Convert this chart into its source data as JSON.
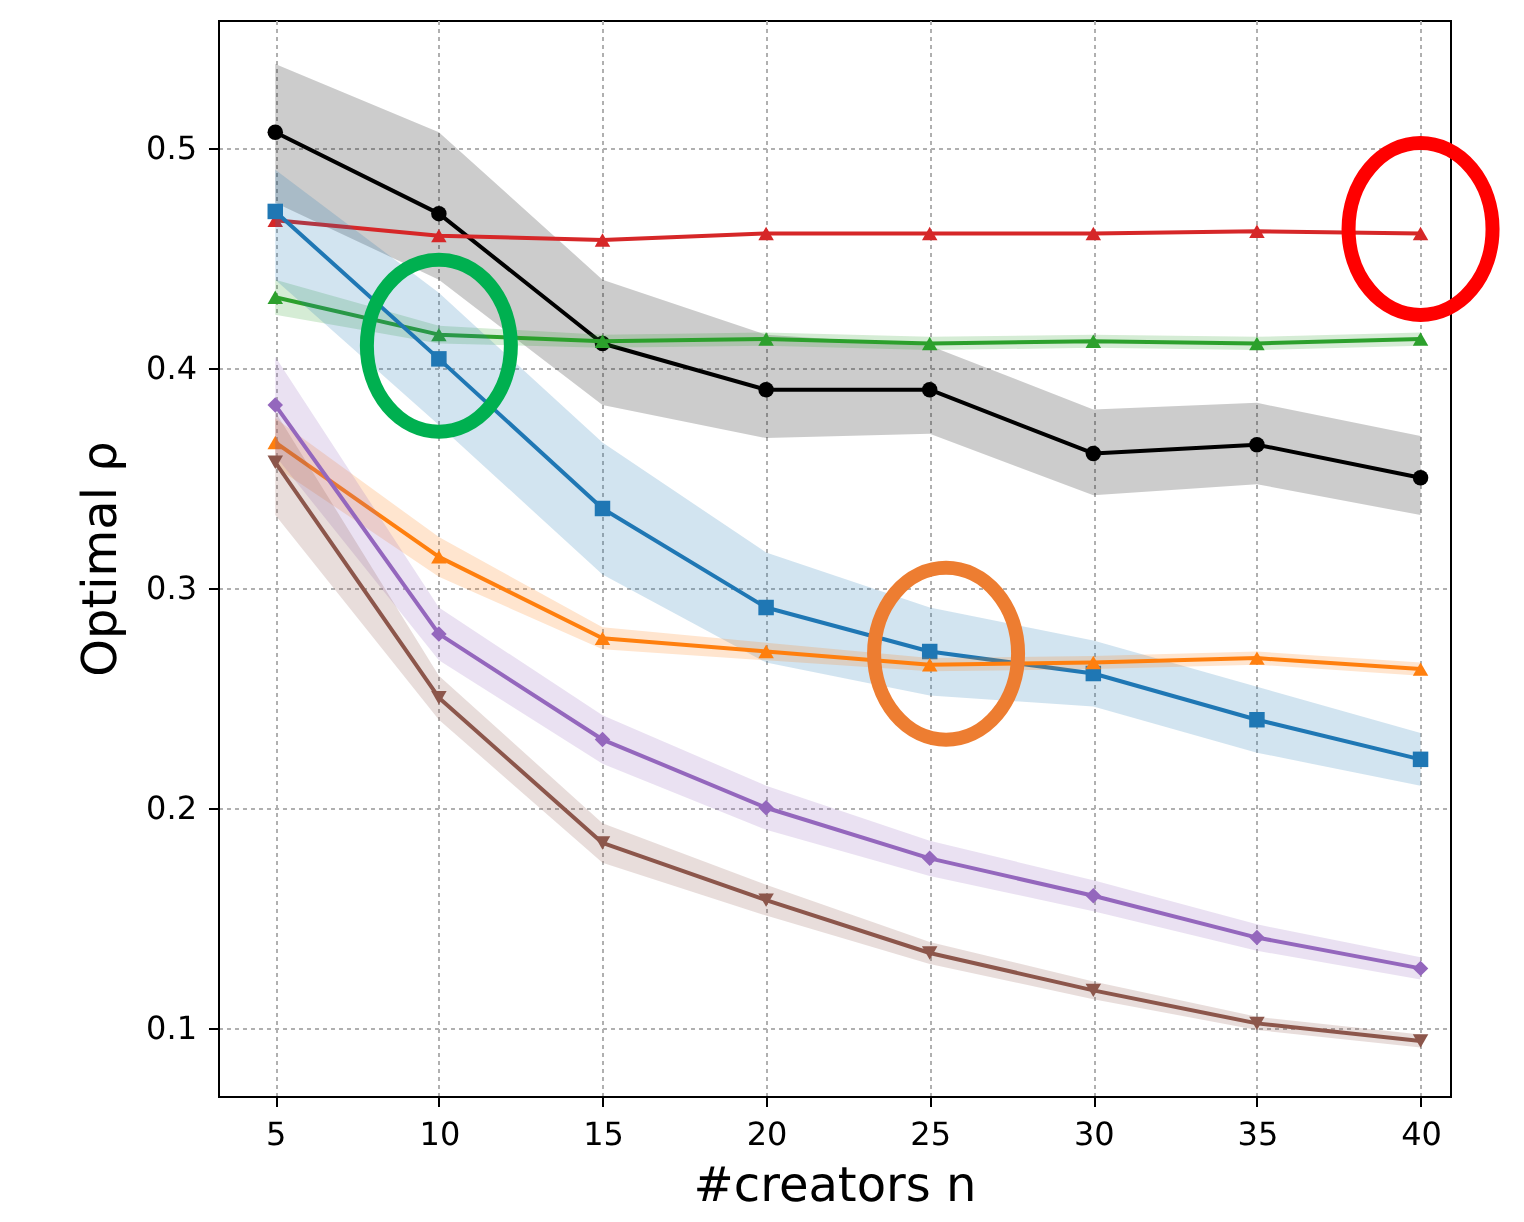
{
  "chart_data": {
    "type": "line",
    "xlabel": "#creators n",
    "ylabel": "Optimal ρ",
    "x": [
      5,
      10,
      15,
      20,
      25,
      30,
      35,
      40
    ],
    "xlim": [
      3.25,
      40.9
    ],
    "xticks": [
      5,
      10,
      15,
      20,
      25,
      30,
      35,
      40
    ],
    "ylim": [
      0.069,
      0.558
    ],
    "yticks": [
      0.1,
      0.2,
      0.3,
      0.4,
      0.5
    ],
    "grid": true,
    "line_style": "solid",
    "series": [
      {
        "color": "#000000",
        "marker": "circle",
        "values": [
          0.507,
          0.47,
          0.411,
          0.39,
          0.39,
          0.361,
          0.365,
          0.35
        ],
        "lower": [
          0.475,
          0.44,
          0.383,
          0.368,
          0.37,
          0.342,
          0.347,
          0.333
        ],
        "upper": [
          0.538,
          0.507,
          0.44,
          0.415,
          0.41,
          0.381,
          0.384,
          0.369
        ]
      },
      {
        "color": "#d62728",
        "marker": "triangle",
        "values": [
          0.467,
          0.46,
          0.458,
          0.461,
          0.461,
          0.461,
          0.462,
          0.461
        ]
      },
      {
        "color": "#2ca02c",
        "marker": "triangle",
        "values": [
          0.432,
          0.415,
          0.412,
          0.413,
          0.411,
          0.412,
          0.411,
          0.413
        ],
        "lower": [
          0.424,
          0.411,
          0.409,
          0.41,
          0.408,
          0.409,
          0.408,
          0.41
        ],
        "upper": [
          0.44,
          0.419,
          0.415,
          0.416,
          0.414,
          0.415,
          0.414,
          0.416
        ]
      },
      {
        "color": "#1f77b4",
        "marker": "square",
        "values": [
          0.471,
          0.404,
          0.336,
          0.291,
          0.271,
          0.261,
          0.24,
          0.222
        ],
        "lower": [
          0.44,
          0.374,
          0.306,
          0.266,
          0.251,
          0.246,
          0.225,
          0.21
        ],
        "upper": [
          0.49,
          0.434,
          0.366,
          0.316,
          0.291,
          0.276,
          0.255,
          0.234
        ]
      },
      {
        "color": "#ff7f0e",
        "marker": "triangle",
        "values": [
          0.366,
          0.314,
          0.277,
          0.271,
          0.265,
          0.266,
          0.268,
          0.263
        ],
        "lower": [
          0.355,
          0.305,
          0.272,
          0.267,
          0.262,
          0.263,
          0.265,
          0.26
        ],
        "upper": [
          0.377,
          0.323,
          0.282,
          0.275,
          0.268,
          0.269,
          0.271,
          0.266
        ]
      },
      {
        "color": "#9467bd",
        "marker": "diamond",
        "values": [
          0.383,
          0.279,
          0.231,
          0.2,
          0.177,
          0.16,
          0.141,
          0.127
        ],
        "lower": [
          0.36,
          0.267,
          0.22,
          0.19,
          0.169,
          0.153,
          0.135,
          0.122
        ],
        "upper": [
          0.405,
          0.291,
          0.242,
          0.21,
          0.185,
          0.167,
          0.147,
          0.132
        ]
      },
      {
        "color": "#8c564b",
        "marker": "triangle-down",
        "values": [
          0.357,
          0.25,
          0.184,
          0.158,
          0.134,
          0.117,
          0.102,
          0.094
        ],
        "lower": [
          0.333,
          0.24,
          0.175,
          0.151,
          0.129,
          0.113,
          0.099,
          0.091
        ],
        "upper": [
          0.38,
          0.26,
          0.193,
          0.165,
          0.139,
          0.121,
          0.105,
          0.097
        ]
      }
    ]
  }
}
